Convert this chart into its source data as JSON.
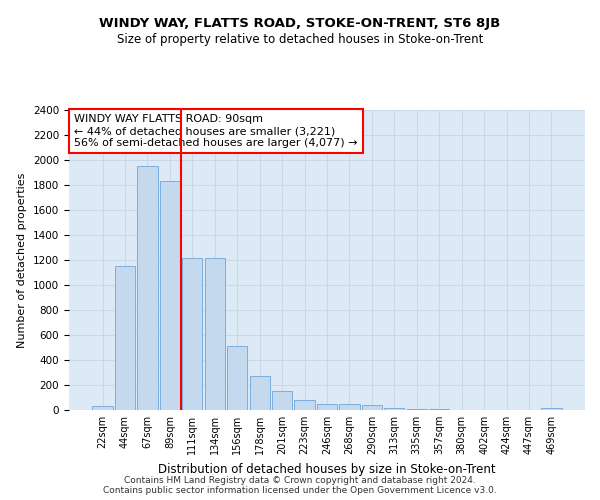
{
  "title": "WINDY WAY, FLATTS ROAD, STOKE-ON-TRENT, ST6 8JB",
  "subtitle": "Size of property relative to detached houses in Stoke-on-Trent",
  "xlabel": "Distribution of detached houses by size in Stoke-on-Trent",
  "ylabel": "Number of detached properties",
  "categories": [
    "22sqm",
    "44sqm",
    "67sqm",
    "89sqm",
    "111sqm",
    "134sqm",
    "156sqm",
    "178sqm",
    "201sqm",
    "223sqm",
    "246sqm",
    "268sqm",
    "290sqm",
    "313sqm",
    "335sqm",
    "357sqm",
    "380sqm",
    "402sqm",
    "424sqm",
    "447sqm",
    "469sqm"
  ],
  "values": [
    30,
    1150,
    1950,
    1830,
    1220,
    1220,
    510,
    270,
    150,
    80,
    50,
    45,
    40,
    15,
    10,
    5,
    0,
    0,
    0,
    0,
    15
  ],
  "bar_color": "#c5d9ee",
  "bar_edge_color": "#7aade0",
  "vline_x": 3.5,
  "vline_color": "red",
  "property_label": "WINDY WAY FLATTS ROAD: 90sqm",
  "annotation_line1": "← 44% of detached houses are smaller (3,221)",
  "annotation_line2": "56% of semi-detached houses are larger (4,077) →",
  "annotation_box_color": "white",
  "annotation_box_edge_color": "red",
  "ylim": [
    0,
    2400
  ],
  "yticks": [
    0,
    200,
    400,
    600,
    800,
    1000,
    1200,
    1400,
    1600,
    1800,
    2000,
    2200,
    2400
  ],
  "grid_color": "#c8d8e8",
  "bg_color": "#ddeaf6",
  "footer_line1": "Contains HM Land Registry data © Crown copyright and database right 2024.",
  "footer_line2": "Contains public sector information licensed under the Open Government Licence v3.0."
}
